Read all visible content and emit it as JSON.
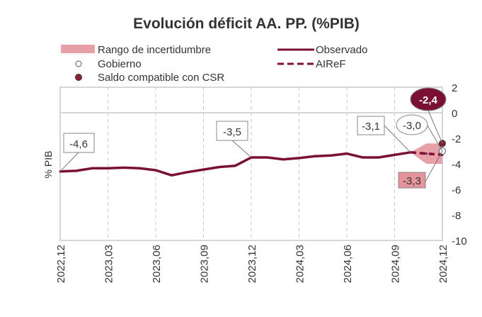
{
  "chart_data": {
    "type": "line",
    "title": "Evolución déficit AA. PP. (%PIB)",
    "ylabel": "% PIB",
    "xlabel": "",
    "ylim": [
      -10,
      2
    ],
    "yticks": [
      2,
      0,
      -2,
      -4,
      -6,
      -8,
      -10
    ],
    "ytick_labels": [
      "2",
      "0",
      "-2",
      "-4",
      "-6",
      "-8",
      "-10"
    ],
    "xticks": [
      "2022,12",
      "2023,03",
      "2023,06",
      "2023,09",
      "2023,12",
      "2024,03",
      "2024,06",
      "2024,09",
      "2024,12"
    ],
    "grid": {
      "vertical": "dashed at x ticks",
      "horizontal": "zero line"
    },
    "legend_position": "top",
    "colors": {
      "observed": "#7b1035",
      "band": "#e8a0a8",
      "csr": "#7b1035",
      "gobierno": "#ffffff"
    },
    "x": [
      "2022-12",
      "2023-01",
      "2023-02",
      "2023-03",
      "2023-04",
      "2023-05",
      "2023-06",
      "2023-07",
      "2023-08",
      "2023-09",
      "2023-10",
      "2023-11",
      "2023-12",
      "2024-01",
      "2024-02",
      "2024-03",
      "2024-04",
      "2024-05",
      "2024-06",
      "2024-07",
      "2024-08",
      "2024-09",
      "2024-10",
      "2024-11",
      "2024-12"
    ],
    "series": [
      {
        "name": "Observado",
        "style": "solid",
        "values": [
          -4.6,
          -4.55,
          -4.35,
          -4.35,
          -4.3,
          -4.35,
          -4.5,
          -4.9,
          -4.65,
          -4.45,
          -4.25,
          -4.15,
          -3.5,
          -3.5,
          -3.65,
          -3.55,
          -3.4,
          -3.35,
          -3.2,
          -3.5,
          -3.5,
          -3.3,
          -3.1,
          null,
          null
        ]
      },
      {
        "name": "AIReF",
        "style": "dashed",
        "values": [
          null,
          null,
          null,
          null,
          null,
          null,
          null,
          null,
          null,
          null,
          null,
          null,
          null,
          null,
          null,
          null,
          null,
          null,
          null,
          null,
          null,
          null,
          -3.1,
          -3.2,
          -3.3
        ]
      },
      {
        "name": "Rango de incertidumbre",
        "type": "band",
        "upper": [
          null,
          null,
          null,
          null,
          null,
          null,
          null,
          null,
          null,
          null,
          null,
          null,
          null,
          null,
          null,
          null,
          null,
          null,
          null,
          null,
          null,
          null,
          -3.1,
          -2.4,
          -2.4
        ],
        "lower": [
          null,
          null,
          null,
          null,
          null,
          null,
          null,
          null,
          null,
          null,
          null,
          null,
          null,
          null,
          null,
          null,
          null,
          null,
          null,
          null,
          null,
          null,
          -3.1,
          -4.0,
          -4.0
        ]
      },
      {
        "name": "Gobierno",
        "type": "point",
        "x": "2024-12",
        "value": -3.0
      },
      {
        "name": "Saldo compatible con CSR",
        "type": "point",
        "x": "2024-12",
        "value": -2.4
      }
    ],
    "legend": [
      "Rango de incertidumbre",
      "Observado",
      "Gobierno",
      "AIReF",
      "Saldo compatible con CSR"
    ],
    "annotations": [
      "-4,6",
      "-3,5",
      "-3,1",
      "-3,0",
      "-2,4",
      "-3,3"
    ]
  }
}
